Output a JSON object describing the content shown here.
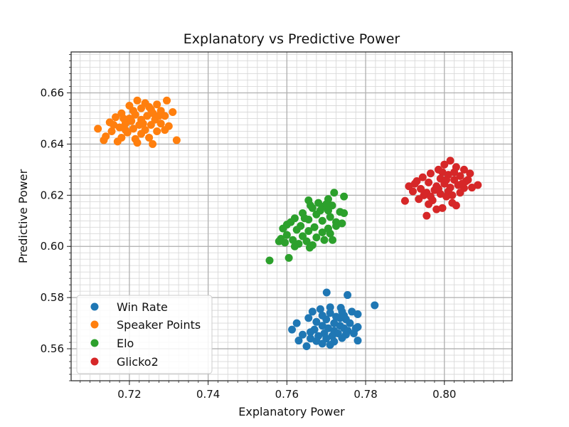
{
  "chart_data": {
    "type": "scatter",
    "title": "Explanatory vs Predictive Power",
    "xlabel": "Explanatory Power",
    "ylabel": "Predictive Power",
    "xlim": [
      0.7052,
      0.8172
    ],
    "ylim": [
      0.5475,
      0.676
    ],
    "xticks": [
      0.72,
      0.74,
      0.76,
      0.78,
      0.8
    ],
    "xtick_labels": [
      "0.72",
      "0.74",
      "0.76",
      "0.78",
      "0.80"
    ],
    "xminor_step": 0.0025,
    "yticks": [
      0.56,
      0.58,
      0.6,
      0.62,
      0.64,
      0.66
    ],
    "ytick_labels": [
      "0.56",
      "0.58",
      "0.60",
      "0.62",
      "0.64",
      "0.66"
    ],
    "yminor_step": 0.0025,
    "grid": true,
    "legend_position": "lower-left",
    "series": [
      {
        "name": "Win Rate",
        "color": "#1f77b4",
        "points": [
          [
            0.7701,
            0.582
          ],
          [
            0.7754,
            0.581
          ],
          [
            0.7823,
            0.577
          ],
          [
            0.7737,
            0.576
          ],
          [
            0.7685,
            0.5755
          ],
          [
            0.771,
            0.574
          ],
          [
            0.774,
            0.5745
          ],
          [
            0.769,
            0.573
          ],
          [
            0.7725,
            0.5725
          ],
          [
            0.778,
            0.5735
          ],
          [
            0.77,
            0.5715
          ],
          [
            0.775,
            0.5715
          ],
          [
            0.7675,
            0.5705
          ],
          [
            0.772,
            0.57
          ],
          [
            0.776,
            0.57
          ],
          [
            0.769,
            0.569
          ],
          [
            0.7735,
            0.569
          ],
          [
            0.7705,
            0.568
          ],
          [
            0.7745,
            0.568
          ],
          [
            0.767,
            0.5675
          ],
          [
            0.772,
            0.567
          ],
          [
            0.7755,
            0.567
          ],
          [
            0.7613,
            0.5675
          ],
          [
            0.766,
            0.5665
          ],
          [
            0.7695,
            0.566
          ],
          [
            0.773,
            0.566
          ],
          [
            0.777,
            0.566
          ],
          [
            0.764,
            0.5655
          ],
          [
            0.768,
            0.565
          ],
          [
            0.7715,
            0.565
          ],
          [
            0.775,
            0.5655
          ],
          [
            0.766,
            0.564
          ],
          [
            0.77,
            0.564
          ],
          [
            0.774,
            0.5642
          ],
          [
            0.763,
            0.5632
          ],
          [
            0.7675,
            0.563
          ],
          [
            0.772,
            0.5628
          ],
          [
            0.778,
            0.5632
          ],
          [
            0.769,
            0.562
          ],
          [
            0.765,
            0.561
          ],
          [
            0.771,
            0.5615
          ],
          [
            0.7775,
            0.568
          ],
          [
            0.778,
            0.5685
          ],
          [
            0.7625,
            0.57
          ],
          [
            0.7655,
            0.572
          ],
          [
            0.7665,
            0.5745
          ],
          [
            0.771,
            0.5762
          ],
          [
            0.7735,
            0.572
          ],
          [
            0.7745,
            0.573
          ],
          [
            0.7765,
            0.5745
          ]
        ]
      },
      {
        "name": "Speaker Points",
        "color": "#ff7f0e",
        "points": [
          [
            0.722,
            0.657
          ],
          [
            0.7295,
            0.657
          ],
          [
            0.724,
            0.656
          ],
          [
            0.727,
            0.6555
          ],
          [
            0.72,
            0.655
          ],
          [
            0.731,
            0.6525
          ],
          [
            0.723,
            0.654
          ],
          [
            0.7255,
            0.6535
          ],
          [
            0.728,
            0.653
          ],
          [
            0.718,
            0.652
          ],
          [
            0.7215,
            0.6515
          ],
          [
            0.7245,
            0.651
          ],
          [
            0.729,
            0.651
          ],
          [
            0.7165,
            0.6505
          ],
          [
            0.72,
            0.65
          ],
          [
            0.723,
            0.6495
          ],
          [
            0.7265,
            0.6495
          ],
          [
            0.715,
            0.6485
          ],
          [
            0.719,
            0.648
          ],
          [
            0.7225,
            0.6475
          ],
          [
            0.7255,
            0.6475
          ],
          [
            0.728,
            0.648
          ],
          [
            0.7175,
            0.6465
          ],
          [
            0.721,
            0.646
          ],
          [
            0.724,
            0.6455
          ],
          [
            0.712,
            0.646
          ],
          [
            0.7155,
            0.645
          ],
          [
            0.7195,
            0.6445
          ],
          [
            0.723,
            0.644
          ],
          [
            0.727,
            0.645
          ],
          [
            0.714,
            0.643
          ],
          [
            0.718,
            0.6425
          ],
          [
            0.7215,
            0.642
          ],
          [
            0.725,
            0.6425
          ],
          [
            0.7135,
            0.6415
          ],
          [
            0.717,
            0.641
          ],
          [
            0.722,
            0.6405
          ],
          [
            0.732,
            0.6415
          ],
          [
            0.7259,
            0.64
          ],
          [
            0.729,
            0.6455
          ],
          [
            0.73,
            0.647
          ],
          [
            0.7185,
            0.65
          ],
          [
            0.726,
            0.652
          ],
          [
            0.7235,
            0.648
          ],
          [
            0.7205,
            0.649
          ],
          [
            0.725,
            0.6545
          ],
          [
            0.7275,
            0.651
          ],
          [
            0.716,
            0.6475
          ],
          [
            0.719,
            0.6455
          ],
          [
            0.721,
            0.653
          ]
        ]
      },
      {
        "name": "Elo",
        "color": "#2ca02c",
        "points": [
          [
            0.772,
            0.621
          ],
          [
            0.7745,
            0.6195
          ],
          [
            0.7705,
            0.6185
          ],
          [
            0.768,
            0.617
          ],
          [
            0.7655,
            0.618
          ],
          [
            0.7715,
            0.616
          ],
          [
            0.769,
            0.6155
          ],
          [
            0.7735,
            0.6135
          ],
          [
            0.7745,
            0.613
          ],
          [
            0.7665,
            0.615
          ],
          [
            0.7705,
            0.614
          ],
          [
            0.764,
            0.613
          ],
          [
            0.7675,
            0.6125
          ],
          [
            0.771,
            0.6115
          ],
          [
            0.762,
            0.611
          ],
          [
            0.7655,
            0.6105
          ],
          [
            0.769,
            0.61
          ],
          [
            0.7725,
            0.6095
          ],
          [
            0.76,
            0.6085
          ],
          [
            0.7635,
            0.608
          ],
          [
            0.767,
            0.6075
          ],
          [
            0.7705,
            0.607
          ],
          [
            0.7725,
            0.608
          ],
          [
            0.759,
            0.607
          ],
          [
            0.7625,
            0.6065
          ],
          [
            0.7655,
            0.606
          ],
          [
            0.769,
            0.6055
          ],
          [
            0.76,
            0.6045
          ],
          [
            0.764,
            0.604
          ],
          [
            0.7675,
            0.6035
          ],
          [
            0.771,
            0.605
          ],
          [
            0.7585,
            0.603
          ],
          [
            0.7615,
            0.6025
          ],
          [
            0.765,
            0.602
          ],
          [
            0.7595,
            0.6015
          ],
          [
            0.763,
            0.601
          ],
          [
            0.7665,
            0.6005
          ],
          [
            0.762,
            0.6
          ],
          [
            0.7658,
            0.5995
          ],
          [
            0.7695,
            0.6025
          ],
          [
            0.7716,
            0.6025
          ],
          [
            0.7556,
            0.5945
          ],
          [
            0.7605,
            0.5955
          ],
          [
            0.758,
            0.602
          ],
          [
            0.761,
            0.6095
          ],
          [
            0.7645,
            0.611
          ],
          [
            0.7685,
            0.614
          ],
          [
            0.774,
            0.609
          ],
          [
            0.766,
            0.616
          ],
          [
            0.77,
            0.6165
          ]
        ]
      },
      {
        "name": "Glicko2",
        "color": "#d62728",
        "points": [
          [
            0.8015,
            0.6335
          ],
          [
            0.8,
            0.632
          ],
          [
            0.803,
            0.631
          ],
          [
            0.7985,
            0.63
          ],
          [
            0.805,
            0.63
          ],
          [
            0.8065,
            0.6285
          ],
          [
            0.7965,
            0.6285
          ],
          [
            0.801,
            0.628
          ],
          [
            0.804,
            0.6275
          ],
          [
            0.7945,
            0.627
          ],
          [
            0.799,
            0.6265
          ],
          [
            0.8025,
            0.626
          ],
          [
            0.8055,
            0.6255
          ],
          [
            0.7925,
            0.6245
          ],
          [
            0.796,
            0.625
          ],
          [
            0.8,
            0.6245
          ],
          [
            0.8035,
            0.624
          ],
          [
            0.8085,
            0.624
          ],
          [
            0.798,
            0.6235
          ],
          [
            0.8015,
            0.623
          ],
          [
            0.805,
            0.6228
          ],
          [
            0.794,
            0.6225
          ],
          [
            0.7975,
            0.622
          ],
          [
            0.801,
            0.6215
          ],
          [
            0.792,
            0.6215
          ],
          [
            0.7955,
            0.621
          ],
          [
            0.799,
            0.6205
          ],
          [
            0.804,
            0.621
          ],
          [
            0.7965,
            0.6195
          ],
          [
            0.8005,
            0.6195
          ],
          [
            0.7935,
            0.6185
          ],
          [
            0.797,
            0.618
          ],
          [
            0.79,
            0.6178
          ],
          [
            0.802,
            0.617
          ],
          [
            0.796,
            0.6165
          ],
          [
            0.803,
            0.616
          ],
          [
            0.7995,
            0.615
          ],
          [
            0.798,
            0.6145
          ],
          [
            0.7955,
            0.612
          ],
          [
            0.806,
            0.626
          ],
          [
            0.807,
            0.623
          ],
          [
            0.793,
            0.6255
          ],
          [
            0.8025,
            0.629
          ],
          [
            0.7995,
            0.629
          ],
          [
            0.8045,
            0.6245
          ],
          [
            0.7948,
            0.62
          ],
          [
            0.7985,
            0.6225
          ],
          [
            0.802,
            0.62
          ],
          [
            0.791,
            0.6235
          ],
          [
            0.8005,
            0.626
          ]
        ]
      }
    ]
  }
}
